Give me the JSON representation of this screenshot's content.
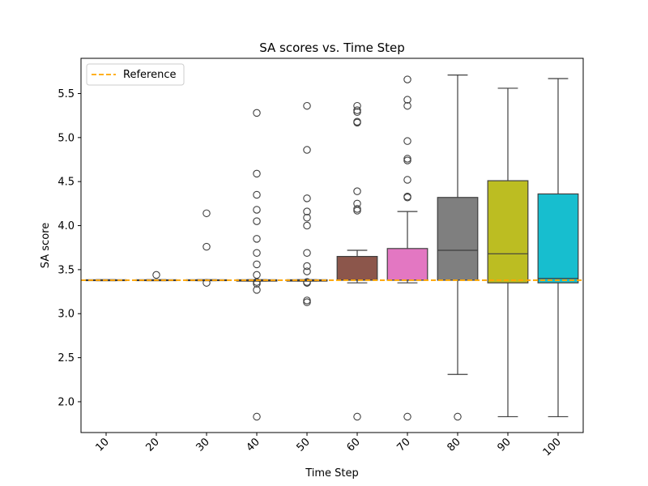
{
  "chart_data": {
    "type": "box",
    "title": "SA scores vs. Time Step",
    "xlabel": "Time Step",
    "ylabel": "SA score",
    "ylim": [
      1.65,
      5.9
    ],
    "yticks": [
      2.0,
      2.5,
      3.0,
      3.5,
      4.0,
      4.5,
      5.0,
      5.5
    ],
    "ytick_labels": [
      "2.0",
      "2.5",
      "3.0",
      "3.5",
      "4.0",
      "4.5",
      "5.0",
      "5.5"
    ],
    "reference": {
      "label": "Reference",
      "value": 3.38,
      "color": "#FFA500",
      "style": "dashed"
    },
    "legend_position": "top-left",
    "boxes": [
      {
        "label": "10",
        "color": "#1f77b4",
        "q1": 3.375,
        "median": 3.38,
        "q3": 3.385,
        "whisker_low": 3.375,
        "whisker_high": 3.385,
        "outliers": []
      },
      {
        "label": "20",
        "color": "#ff7f0e",
        "q1": 3.375,
        "median": 3.38,
        "q3": 3.385,
        "whisker_low": 3.375,
        "whisker_high": 3.385,
        "outliers": [
          3.44
        ]
      },
      {
        "label": "30",
        "color": "#2ca02c",
        "q1": 3.375,
        "median": 3.38,
        "q3": 3.385,
        "whisker_low": 3.375,
        "whisker_high": 3.385,
        "outliers": [
          4.14,
          3.76,
          3.35
        ]
      },
      {
        "label": "40",
        "color": "#d62728",
        "q1": 3.37,
        "median": 3.38,
        "q3": 3.385,
        "whisker_low": 3.37,
        "whisker_high": 3.385,
        "outliers": [
          5.28,
          4.59,
          4.35,
          4.18,
          4.05,
          3.85,
          3.69,
          3.56,
          3.44,
          3.36,
          3.34,
          3.27,
          1.83
        ]
      },
      {
        "label": "50",
        "color": "#9467bd",
        "q1": 3.37,
        "median": 3.38,
        "q3": 3.385,
        "whisker_low": 3.37,
        "whisker_high": 3.385,
        "outliers": [
          5.36,
          4.86,
          4.31,
          4.16,
          4.09,
          4.0,
          3.69,
          3.54,
          3.48,
          3.36,
          3.35,
          3.15,
          3.13
        ]
      },
      {
        "label": "60",
        "color": "#8c564b",
        "q1": 3.38,
        "median": 3.38,
        "q3": 3.65,
        "whisker_low": 3.35,
        "whisker_high": 3.72,
        "outliers": [
          5.36,
          5.31,
          5.29,
          5.18,
          5.17,
          4.39,
          4.25,
          4.19,
          4.17,
          1.83
        ]
      },
      {
        "label": "70",
        "color": "#e377c2",
        "q1": 3.38,
        "median": 3.38,
        "q3": 3.74,
        "whisker_low": 3.35,
        "whisker_high": 4.16,
        "outliers": [
          5.66,
          5.43,
          5.36,
          4.96,
          4.76,
          4.74,
          4.52,
          4.33,
          4.32,
          1.83
        ]
      },
      {
        "label": "80",
        "color": "#7f7f7f",
        "q1": 3.38,
        "median": 3.72,
        "q3": 4.32,
        "whisker_low": 2.31,
        "whisker_high": 5.71,
        "outliers": [
          1.83
        ]
      },
      {
        "label": "90",
        "color": "#bcbd22",
        "q1": 3.35,
        "median": 3.68,
        "q3": 4.51,
        "whisker_low": 1.83,
        "whisker_high": 5.56,
        "outliers": []
      },
      {
        "label": "100",
        "color": "#17becf",
        "q1": 3.35,
        "median": 3.4,
        "q3": 4.36,
        "whisker_low": 1.83,
        "whisker_high": 5.67,
        "outliers": []
      }
    ]
  }
}
